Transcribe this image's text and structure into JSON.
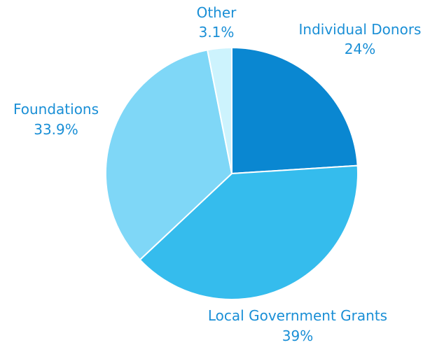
{
  "chart_data": {
    "type": "pie",
    "title": "",
    "start_angle_deg": 0,
    "direction": "clockwise",
    "slices": [
      {
        "label": "Individual Donors",
        "value": 24,
        "value_label": "24%",
        "color": "#0a87d1"
      },
      {
        "label": "Local Government Grants",
        "value": 39,
        "value_label": "39%",
        "color": "#35bced"
      },
      {
        "label": "Foundations",
        "value": 33.9,
        "value_label": "33.9%",
        "color": "#7fd7f7"
      },
      {
        "label": "Other",
        "value": 3.1,
        "value_label": "3.1%",
        "color": "#cdf3fd"
      }
    ],
    "label_color": "#1a8fd6",
    "slice_border_color": "#ffffff"
  }
}
